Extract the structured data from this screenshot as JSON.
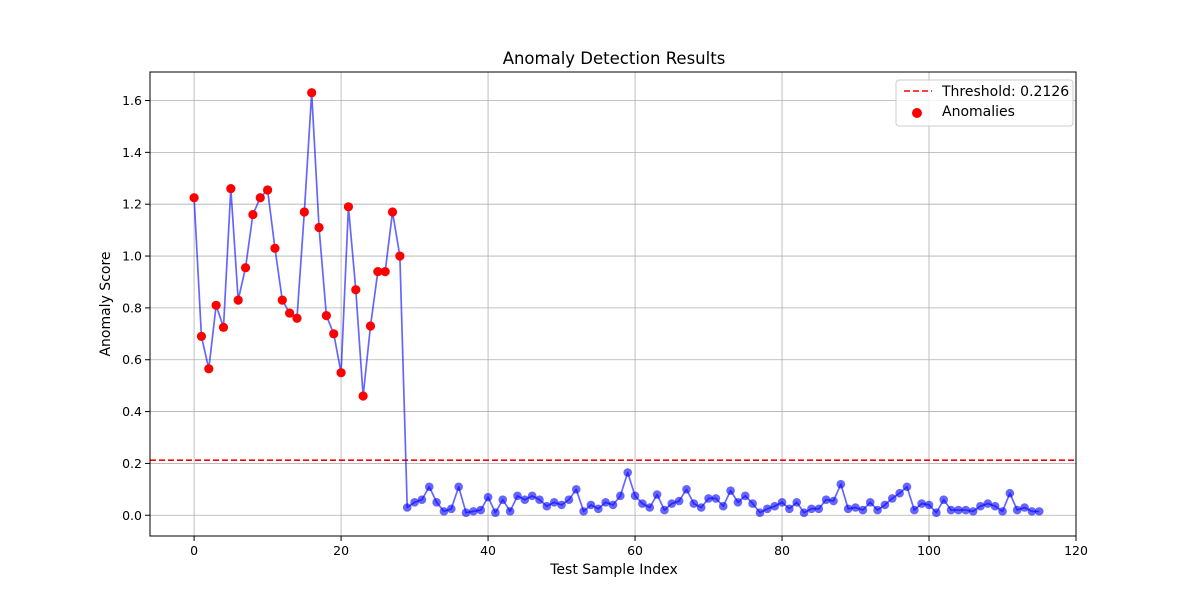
{
  "chart_data": {
    "type": "line",
    "title": "Anomaly Detection Results",
    "xlabel": "Test Sample Index",
    "ylabel": "Anomaly Score",
    "xlim": [
      -6,
      120
    ],
    "ylim": [
      -0.08,
      1.71
    ],
    "xticks": [
      0,
      20,
      40,
      60,
      80,
      100,
      120
    ],
    "yticks": [
      0.0,
      0.2,
      0.4,
      0.6,
      0.8,
      1.0,
      1.2,
      1.4,
      1.6
    ],
    "grid": true,
    "legend_position": "top-right",
    "threshold": {
      "value": 0.2126,
      "label": "Threshold: 0.2126",
      "color": "#ff0000",
      "style": "dashed"
    },
    "series": {
      "line_color": "#0000ff",
      "marker_color": "#0000ff",
      "anomaly_label": "Anomalies",
      "anomaly_color": "#ff0000",
      "x": [
        0,
        1,
        2,
        3,
        4,
        5,
        6,
        7,
        8,
        9,
        10,
        11,
        12,
        13,
        14,
        15,
        16,
        17,
        18,
        19,
        20,
        21,
        22,
        23,
        24,
        25,
        26,
        27,
        28,
        29,
        30,
        31,
        32,
        33,
        34,
        35,
        36,
        37,
        38,
        39,
        40,
        41,
        42,
        43,
        44,
        45,
        46,
        47,
        48,
        49,
        50,
        51,
        52,
        53,
        54,
        55,
        56,
        57,
        58,
        59,
        60,
        61,
        62,
        63,
        64,
        65,
        66,
        67,
        68,
        69,
        70,
        71,
        72,
        73,
        74,
        75,
        76,
        77,
        78,
        79,
        80,
        81,
        82,
        83,
        84,
        85,
        86,
        87,
        88,
        89,
        90,
        91,
        92,
        93,
        94,
        95,
        96,
        97,
        98,
        99,
        100,
        101,
        102,
        103,
        104,
        105,
        106,
        107,
        108,
        109,
        110,
        111,
        112,
        113,
        114,
        115
      ],
      "values": [
        1.225,
        0.69,
        0.565,
        0.81,
        0.725,
        1.26,
        0.83,
        0.955,
        1.16,
        1.225,
        1.255,
        1.03,
        0.83,
        0.78,
        0.76,
        1.17,
        1.63,
        1.11,
        0.77,
        0.7,
        0.55,
        1.19,
        0.87,
        0.46,
        0.73,
        0.94,
        0.94,
        1.17,
        1.0,
        0.03,
        0.05,
        0.06,
        0.11,
        0.05,
        0.015,
        0.025,
        0.11,
        0.01,
        0.015,
        0.02,
        0.07,
        0.01,
        0.06,
        0.015,
        0.075,
        0.06,
        0.075,
        0.06,
        0.035,
        0.05,
        0.04,
        0.06,
        0.1,
        0.015,
        0.04,
        0.025,
        0.05,
        0.04,
        0.075,
        0.165,
        0.075,
        0.045,
        0.03,
        0.08,
        0.02,
        0.045,
        0.055,
        0.1,
        0.045,
        0.03,
        0.065,
        0.065,
        0.035,
        0.095,
        0.05,
        0.075,
        0.045,
        0.01,
        0.025,
        0.035,
        0.05,
        0.025,
        0.05,
        0.01,
        0.025,
        0.025,
        0.06,
        0.055,
        0.12,
        0.025,
        0.03,
        0.02,
        0.05,
        0.02,
        0.04,
        0.065,
        0.085,
        0.11,
        0.02,
        0.045,
        0.04,
        0.01,
        0.06,
        0.02,
        0.02,
        0.02,
        0.015,
        0.035,
        0.045,
        0.035,
        0.015,
        0.085,
        0.02,
        0.03,
        0.015,
        0.015
      ],
      "anomaly_x": [
        0,
        1,
        2,
        3,
        4,
        5,
        6,
        7,
        8,
        9,
        10,
        11,
        12,
        13,
        14,
        15,
        16,
        17,
        18,
        19,
        20,
        21,
        22,
        23,
        24,
        25,
        26,
        27,
        28
      ],
      "anomaly_values": [
        1.225,
        0.69,
        0.565,
        0.81,
        0.725,
        1.26,
        0.83,
        0.955,
        1.16,
        1.225,
        1.255,
        1.03,
        0.83,
        0.78,
        0.76,
        1.17,
        1.63,
        1.11,
        0.77,
        0.7,
        0.55,
        1.19,
        0.87,
        0.46,
        0.73,
        0.94,
        0.94,
        1.17,
        1.0
      ]
    }
  }
}
